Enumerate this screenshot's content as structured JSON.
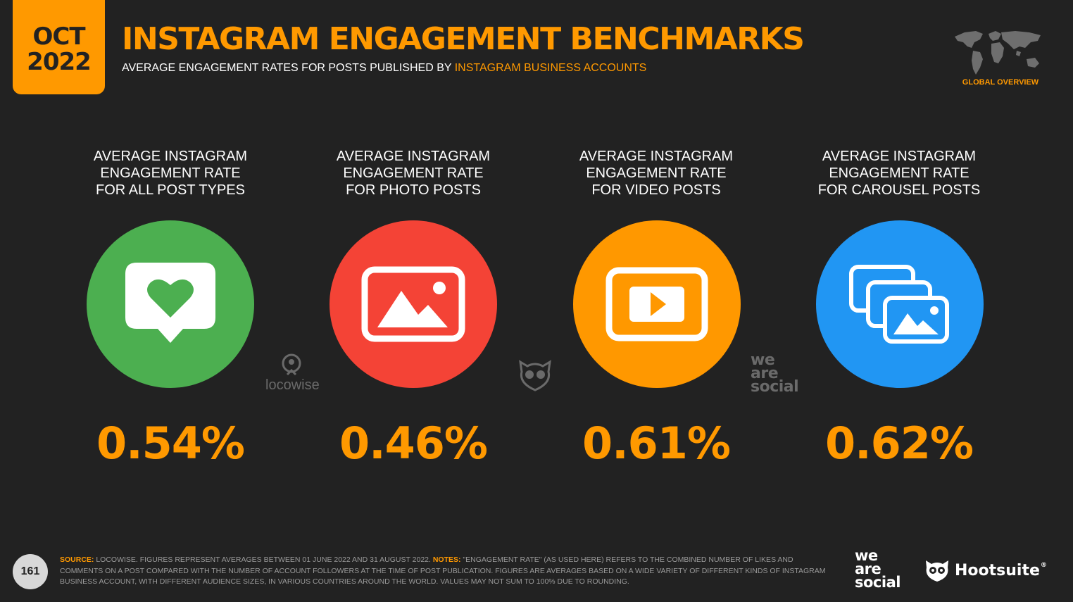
{
  "header": {
    "date_month": "OCT",
    "date_year": "2022",
    "title": "INSTAGRAM ENGAGEMENT BENCHMARKS",
    "subtitle_plain": "AVERAGE ENGAGEMENT RATES FOR POSTS PUBLISHED BY",
    "subtitle_highlight": "INSTAGRAM BUSINESS ACCOUNTS",
    "region_label": "GLOBAL OVERVIEW"
  },
  "benchmarks": [
    {
      "label": "AVERAGE INSTAGRAM\nENGAGEMENT RATE\nFOR ALL POST TYPES",
      "value": "0.54%",
      "color": "#4caf50",
      "icon": "heart-speech-bubble-icon"
    },
    {
      "label": "AVERAGE INSTAGRAM\nENGAGEMENT RATE\nFOR PHOTO POSTS",
      "value": "0.46%",
      "color": "#f44336",
      "icon": "photo-icon"
    },
    {
      "label": "AVERAGE INSTAGRAM\nENGAGEMENT RATE\nFOR VIDEO POSTS",
      "value": "0.61%",
      "color": "#ff9800",
      "icon": "video-play-icon"
    },
    {
      "label": "AVERAGE INSTAGRAM\nENGAGEMENT RATE\nFOR CAROUSEL POSTS",
      "value": "0.62%",
      "color": "#2196f3",
      "icon": "carousel-photos-icon"
    }
  ],
  "watermarks": {
    "locowise": "locowise",
    "we_are_social": [
      "we",
      "are",
      "social"
    ]
  },
  "footer": {
    "page_number": "161",
    "source_label": "SOURCE:",
    "source_text": " LOCOWISE. FIGURES REPRESENT AVERAGES BETWEEN 01 JUNE 2022 AND 31 AUGUST 2022. ",
    "notes_label": "NOTES:",
    "notes_text": " \"ENGAGEMENT RATE\" (AS USED HERE) REFERS TO THE COMBINED NUMBER OF LIKES AND COMMENTS ON A POST COMPARED WITH THE NUMBER OF ACCOUNT FOLLOWERS AT THE TIME OF POST PUBLICATION. FIGURES ARE AVERAGES BASED ON A WIDE VARIETY OF DIFFERENT KINDS OF INSTAGRAM BUSINESS ACCOUNT, WITH DIFFERENT AUDIENCE SIZES, IN VARIOUS COUNTRIES AROUND THE WORLD. VALUES MAY NOT SUM TO 100% DUE TO ROUNDING.",
    "brand_was": [
      "we",
      "are",
      "social"
    ],
    "brand_hootsuite": "Hootsuite",
    "registered_mark": "®"
  }
}
